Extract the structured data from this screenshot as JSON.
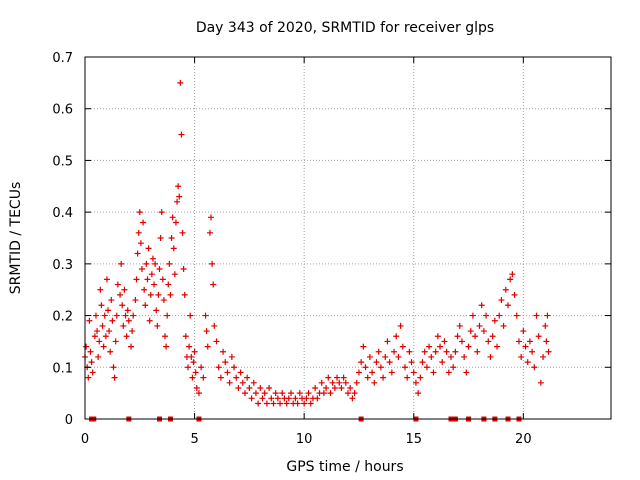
{
  "chart_data": {
    "type": "scatter",
    "title": "Day 343 of 2020, SRMTID for receiver glps",
    "xlabel": "GPS time / hours",
    "ylabel": "SRMTID / TECUs",
    "xlim": [
      0,
      24
    ],
    "ylim": [
      0,
      0.7
    ],
    "x_ticks": [
      0,
      5,
      10,
      15,
      20
    ],
    "x_tick_labels": [
      "0",
      "5",
      "10",
      "15",
      "20"
    ],
    "y_ticks": [
      0,
      0.1,
      0.2,
      0.3,
      0.4,
      0.5,
      0.6,
      0.7
    ],
    "y_tick_labels": [
      "0",
      "0.1",
      "0.2",
      "0.3",
      "0.4",
      "0.5",
      "0.6",
      "0.7"
    ],
    "grid": true,
    "marker": "plus",
    "color": "#e00000",
    "series": [
      {
        "name": "SRMTID",
        "points": [
          [
            0.0,
            0.12
          ],
          [
            0.05,
            0.14
          ],
          [
            0.1,
            0.1
          ],
          [
            0.15,
            0.08
          ],
          [
            0.2,
            0.19
          ],
          [
            0.25,
            0.13
          ],
          [
            0.3,
            0.11
          ],
          [
            0.35,
            0.09
          ],
          [
            0.45,
            0.16
          ],
          [
            0.5,
            0.2
          ],
          [
            0.55,
            0.17
          ],
          [
            0.6,
            0.12
          ],
          [
            0.65,
            0.15
          ],
          [
            0.7,
            0.25
          ],
          [
            0.75,
            0.22
          ],
          [
            0.8,
            0.18
          ],
          [
            0.85,
            0.14
          ],
          [
            0.9,
            0.2
          ],
          [
            0.95,
            0.16
          ],
          [
            1.0,
            0.27
          ],
          [
            1.05,
            0.21
          ],
          [
            1.1,
            0.17
          ],
          [
            1.15,
            0.13
          ],
          [
            1.2,
            0.23
          ],
          [
            1.25,
            0.19
          ],
          [
            1.3,
            0.1
          ],
          [
            1.35,
            0.08
          ],
          [
            1.4,
            0.15
          ],
          [
            1.45,
            0.2
          ],
          [
            1.5,
            0.26
          ],
          [
            1.6,
            0.24
          ],
          [
            1.65,
            0.3
          ],
          [
            1.7,
            0.22
          ],
          [
            1.75,
            0.18
          ],
          [
            1.8,
            0.25
          ],
          [
            1.85,
            0.2
          ],
          [
            1.9,
            0.16
          ],
          [
            1.95,
            0.21
          ],
          [
            2.0,
            0.19
          ],
          [
            2.1,
            0.14
          ],
          [
            2.15,
            0.17
          ],
          [
            2.2,
            0.2
          ],
          [
            2.3,
            0.23
          ],
          [
            2.35,
            0.27
          ],
          [
            2.4,
            0.32
          ],
          [
            2.45,
            0.36
          ],
          [
            2.5,
            0.4
          ],
          [
            2.55,
            0.34
          ],
          [
            2.6,
            0.29
          ],
          [
            2.65,
            0.38
          ],
          [
            2.7,
            0.25
          ],
          [
            2.75,
            0.22
          ],
          [
            2.8,
            0.3
          ],
          [
            2.85,
            0.27
          ],
          [
            2.9,
            0.33
          ],
          [
            2.95,
            0.19
          ],
          [
            3.0,
            0.24
          ],
          [
            3.05,
            0.28
          ],
          [
            3.1,
            0.31
          ],
          [
            3.15,
            0.26
          ],
          [
            3.2,
            0.3
          ],
          [
            3.25,
            0.21
          ],
          [
            3.3,
            0.18
          ],
          [
            3.35,
            0.24
          ],
          [
            3.4,
            0.29
          ],
          [
            3.45,
            0.35
          ],
          [
            3.5,
            0.4
          ],
          [
            3.55,
            0.27
          ],
          [
            3.6,
            0.23
          ],
          [
            3.65,
            0.16
          ],
          [
            3.7,
            0.14
          ],
          [
            3.75,
            0.2
          ],
          [
            3.8,
            0.26
          ],
          [
            3.85,
            0.3
          ],
          [
            3.9,
            0.24
          ],
          [
            3.95,
            0.35
          ],
          [
            4.0,
            0.39
          ],
          [
            4.05,
            0.33
          ],
          [
            4.1,
            0.28
          ],
          [
            4.15,
            0.38
          ],
          [
            4.2,
            0.42
          ],
          [
            4.25,
            0.45
          ],
          [
            4.3,
            0.43
          ],
          [
            4.35,
            0.65
          ],
          [
            4.4,
            0.55
          ],
          [
            4.45,
            0.36
          ],
          [
            4.5,
            0.29
          ],
          [
            4.55,
            0.24
          ],
          [
            4.6,
            0.16
          ],
          [
            4.65,
            0.12
          ],
          [
            4.7,
            0.1
          ],
          [
            4.75,
            0.14
          ],
          [
            4.8,
            0.2
          ],
          [
            4.85,
            0.12
          ],
          [
            4.9,
            0.08
          ],
          [
            4.95,
            0.11
          ],
          [
            5.0,
            0.13
          ],
          [
            5.05,
            0.09
          ],
          [
            5.1,
            0.06
          ],
          [
            5.2,
            0.05
          ],
          [
            5.3,
            0.1
          ],
          [
            5.4,
            0.08
          ],
          [
            5.5,
            0.2
          ],
          [
            5.55,
            0.17
          ],
          [
            5.6,
            0.14
          ],
          [
            5.7,
            0.36
          ],
          [
            5.75,
            0.39
          ],
          [
            5.8,
            0.3
          ],
          [
            5.85,
            0.26
          ],
          [
            5.9,
            0.18
          ],
          [
            6.0,
            0.15
          ],
          [
            6.1,
            0.1
          ],
          [
            6.2,
            0.08
          ],
          [
            6.3,
            0.13
          ],
          [
            6.4,
            0.11
          ],
          [
            6.5,
            0.09
          ],
          [
            6.6,
            0.07
          ],
          [
            6.7,
            0.12
          ],
          [
            6.8,
            0.1
          ],
          [
            6.9,
            0.08
          ],
          [
            7.0,
            0.06
          ],
          [
            7.1,
            0.09
          ],
          [
            7.2,
            0.07
          ],
          [
            7.3,
            0.05
          ],
          [
            7.4,
            0.08
          ],
          [
            7.5,
            0.06
          ],
          [
            7.6,
            0.04
          ],
          [
            7.7,
            0.07
          ],
          [
            7.8,
            0.05
          ],
          [
            7.9,
            0.03
          ],
          [
            8.0,
            0.06
          ],
          [
            8.1,
            0.04
          ],
          [
            8.2,
            0.05
          ],
          [
            8.3,
            0.03
          ],
          [
            8.4,
            0.06
          ],
          [
            8.5,
            0.04
          ],
          [
            8.6,
            0.03
          ],
          [
            8.7,
            0.05
          ],
          [
            8.8,
            0.04
          ],
          [
            8.9,
            0.03
          ],
          [
            9.0,
            0.05
          ],
          [
            9.1,
            0.04
          ],
          [
            9.2,
            0.03
          ],
          [
            9.3,
            0.04
          ],
          [
            9.4,
            0.05
          ],
          [
            9.5,
            0.03
          ],
          [
            9.6,
            0.04
          ],
          [
            9.7,
            0.03
          ],
          [
            9.8,
            0.05
          ],
          [
            9.9,
            0.04
          ],
          [
            10.0,
            0.03
          ],
          [
            10.1,
            0.04
          ],
          [
            10.2,
            0.05
          ],
          [
            10.3,
            0.03
          ],
          [
            10.4,
            0.04
          ],
          [
            10.5,
            0.06
          ],
          [
            10.6,
            0.04
          ],
          [
            10.7,
            0.05
          ],
          [
            10.8,
            0.07
          ],
          [
            10.9,
            0.05
          ],
          [
            11.0,
            0.06
          ],
          [
            11.1,
            0.08
          ],
          [
            11.2,
            0.05
          ],
          [
            11.3,
            0.07
          ],
          [
            11.4,
            0.06
          ],
          [
            11.5,
            0.08
          ],
          [
            11.6,
            0.07
          ],
          [
            11.7,
            0.06
          ],
          [
            11.8,
            0.08
          ],
          [
            11.9,
            0.07
          ],
          [
            12.0,
            0.05
          ],
          [
            12.1,
            0.06
          ],
          [
            12.2,
            0.04
          ],
          [
            12.3,
            0.05
          ],
          [
            12.4,
            0.07
          ],
          [
            12.5,
            0.09
          ],
          [
            12.6,
            0.11
          ],
          [
            12.7,
            0.14
          ],
          [
            12.8,
            0.1
          ],
          [
            12.9,
            0.08
          ],
          [
            13.0,
            0.12
          ],
          [
            13.1,
            0.09
          ],
          [
            13.2,
            0.07
          ],
          [
            13.3,
            0.11
          ],
          [
            13.4,
            0.13
          ],
          [
            13.5,
            0.1
          ],
          [
            13.6,
            0.08
          ],
          [
            13.7,
            0.12
          ],
          [
            13.8,
            0.15
          ],
          [
            13.9,
            0.11
          ],
          [
            14.0,
            0.09
          ],
          [
            14.1,
            0.13
          ],
          [
            14.2,
            0.16
          ],
          [
            14.3,
            0.12
          ],
          [
            14.4,
            0.18
          ],
          [
            14.5,
            0.14
          ],
          [
            14.6,
            0.1
          ],
          [
            14.7,
            0.08
          ],
          [
            14.8,
            0.13
          ],
          [
            14.9,
            0.11
          ],
          [
            15.0,
            0.09
          ],
          [
            15.1,
            0.07
          ],
          [
            15.2,
            0.05
          ],
          [
            15.3,
            0.08
          ],
          [
            15.4,
            0.11
          ],
          [
            15.5,
            0.13
          ],
          [
            15.6,
            0.1
          ],
          [
            15.7,
            0.14
          ],
          [
            15.8,
            0.12
          ],
          [
            15.9,
            0.09
          ],
          [
            16.0,
            0.13
          ],
          [
            16.1,
            0.16
          ],
          [
            16.2,
            0.14
          ],
          [
            16.3,
            0.11
          ],
          [
            16.4,
            0.15
          ],
          [
            16.5,
            0.13
          ],
          [
            16.6,
            0.09
          ],
          [
            16.7,
            0.12
          ],
          [
            16.8,
            0.1
          ],
          [
            16.9,
            0.13
          ],
          [
            17.0,
            0.16
          ],
          [
            17.1,
            0.18
          ],
          [
            17.2,
            0.15
          ],
          [
            17.3,
            0.12
          ],
          [
            17.4,
            0.09
          ],
          [
            17.5,
            0.14
          ],
          [
            17.6,
            0.17
          ],
          [
            17.7,
            0.2
          ],
          [
            17.8,
            0.16
          ],
          [
            17.9,
            0.13
          ],
          [
            18.0,
            0.18
          ],
          [
            18.1,
            0.22
          ],
          [
            18.2,
            0.17
          ],
          [
            18.3,
            0.2
          ],
          [
            18.4,
            0.15
          ],
          [
            18.5,
            0.12
          ],
          [
            18.6,
            0.16
          ],
          [
            18.7,
            0.19
          ],
          [
            18.8,
            0.14
          ],
          [
            18.9,
            0.2
          ],
          [
            19.0,
            0.23
          ],
          [
            19.1,
            0.18
          ],
          [
            19.2,
            0.25
          ],
          [
            19.3,
            0.22
          ],
          [
            19.4,
            0.27
          ],
          [
            19.5,
            0.28
          ],
          [
            19.6,
            0.24
          ],
          [
            19.7,
            0.2
          ],
          [
            19.8,
            0.15
          ],
          [
            19.9,
            0.12
          ],
          [
            20.0,
            0.17
          ],
          [
            20.1,
            0.14
          ],
          [
            20.2,
            0.11
          ],
          [
            20.3,
            0.15
          ],
          [
            20.4,
            0.13
          ],
          [
            20.5,
            0.1
          ],
          [
            20.6,
            0.2
          ],
          [
            20.7,
            0.16
          ],
          [
            20.8,
            0.07
          ],
          [
            20.9,
            0.12
          ],
          [
            21.0,
            0.18
          ],
          [
            21.05,
            0.15
          ],
          [
            21.1,
            0.2
          ],
          [
            21.15,
            0.13
          ]
        ]
      }
    ],
    "ground_markers_x": [
      0.3,
      0.4,
      2.0,
      3.4,
      3.9,
      5.2,
      12.6,
      15.1,
      16.7,
      16.8,
      16.9,
      17.5,
      18.2,
      18.7,
      19.3,
      19.8
    ]
  }
}
